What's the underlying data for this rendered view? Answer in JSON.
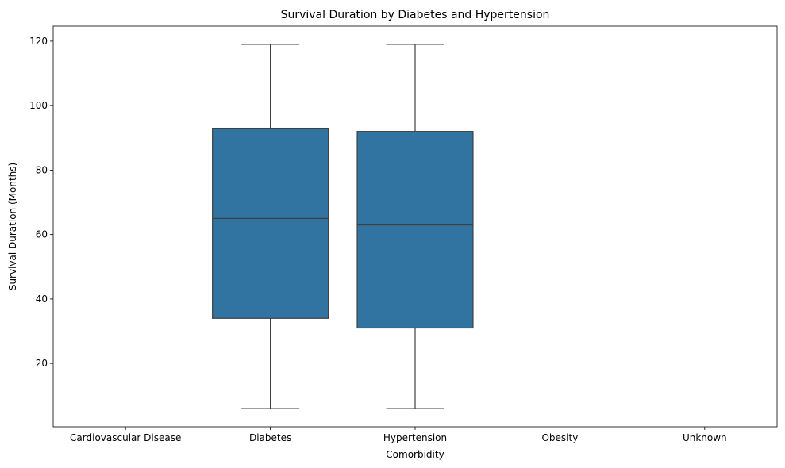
{
  "chart_data": {
    "type": "box",
    "title": "Survival Duration by Diabetes and Hypertension",
    "xlabel": "Comorbidity",
    "ylabel": "Survival Duration (Months)",
    "categories": [
      "Cardiovascular Disease",
      "Diabetes",
      "Hypertension",
      "Obesity",
      "Unknown"
    ],
    "boxes": [
      {
        "category": "Diabetes",
        "whisker_low": 6,
        "q1": 34,
        "median": 65,
        "q3": 93,
        "whisker_high": 119
      },
      {
        "category": "Hypertension",
        "whisker_low": 6,
        "q1": 31,
        "median": 63,
        "q3": 92,
        "whisker_high": 119
      }
    ],
    "ylim": [
      0.35,
      124.65
    ],
    "yticks": [
      20,
      40,
      60,
      80,
      100,
      120
    ],
    "grid": false,
    "legend": "none",
    "colors": {
      "box_fill": "#3274a1",
      "line": "#3f3f3f",
      "axis": "#000000"
    }
  }
}
